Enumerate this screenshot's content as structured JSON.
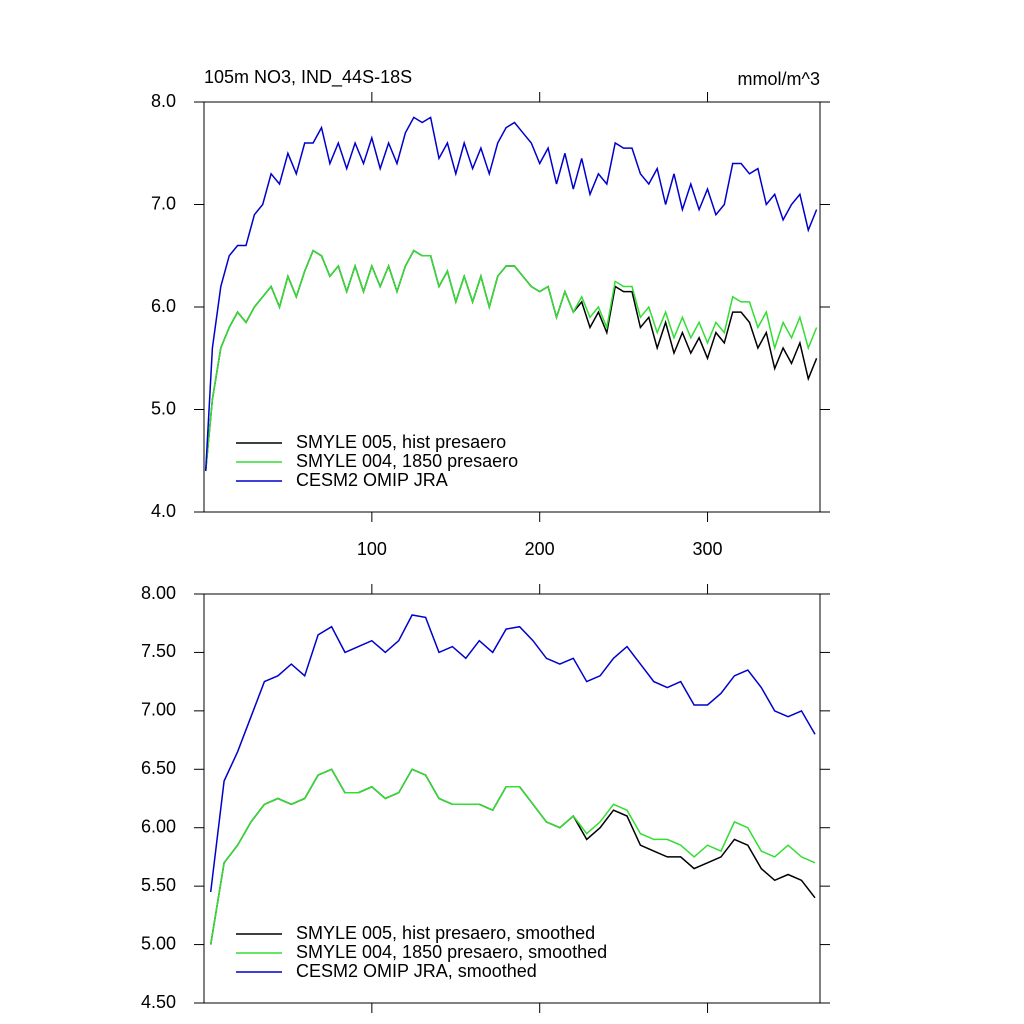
{
  "chart_data": [
    {
      "type": "line",
      "title": "105m NO3, IND_44S-18S",
      "units": "mmol/m^3",
      "x": [
        1,
        5,
        10,
        15,
        20,
        25,
        30,
        35,
        40,
        45,
        50,
        55,
        60,
        65,
        70,
        75,
        80,
        85,
        90,
        95,
        100,
        105,
        110,
        115,
        120,
        125,
        130,
        135,
        140,
        145,
        150,
        155,
        160,
        165,
        170,
        175,
        180,
        185,
        190,
        195,
        200,
        205,
        210,
        215,
        220,
        225,
        230,
        235,
        240,
        245,
        250,
        255,
        260,
        265,
        270,
        275,
        280,
        285,
        290,
        295,
        300,
        305,
        310,
        315,
        320,
        325,
        330,
        335,
        340,
        345,
        350,
        355,
        360,
        365
      ],
      "xlim": [
        0,
        367
      ],
      "xticks": [
        100,
        200,
        300
      ],
      "ylim": [
        4,
        8
      ],
      "yticks": [
        {
          "value": 4,
          "label": "4.0"
        },
        {
          "value": 5,
          "label": "5.0"
        },
        {
          "value": 6,
          "label": "6.0"
        },
        {
          "value": 7,
          "label": "7.0"
        },
        {
          "value": 8,
          "label": "8.0"
        }
      ],
      "legend": "lower left",
      "series": [
        {
          "name": "SMYLE 005, hist presaero",
          "color": "#000000",
          "values": [
            4.4,
            5.1,
            5.6,
            5.8,
            5.95,
            5.85,
            6.0,
            6.1,
            6.2,
            6.0,
            6.3,
            6.1,
            6.35,
            6.55,
            6.5,
            6.3,
            6.4,
            6.15,
            6.4,
            6.15,
            6.4,
            6.2,
            6.4,
            6.15,
            6.4,
            6.55,
            6.5,
            6.5,
            6.2,
            6.35,
            6.05,
            6.3,
            6.05,
            6.3,
            6.0,
            6.3,
            6.4,
            6.4,
            6.3,
            6.2,
            6.15,
            6.2,
            5.9,
            6.15,
            5.95,
            6.05,
            5.8,
            5.95,
            5.75,
            6.2,
            6.15,
            6.15,
            5.8,
            5.9,
            5.6,
            5.85,
            5.55,
            5.75,
            5.55,
            5.7,
            5.5,
            5.75,
            5.65,
            5.95,
            5.95,
            5.85,
            5.6,
            5.75,
            5.4,
            5.6,
            5.45,
            5.65,
            5.3,
            5.5
          ]
        },
        {
          "name": "SMYLE 004, 1850 presaero",
          "color": "#33dd33",
          "values": [
            4.4,
            5.1,
            5.6,
            5.8,
            5.95,
            5.85,
            6.0,
            6.1,
            6.2,
            6.0,
            6.3,
            6.1,
            6.35,
            6.55,
            6.5,
            6.3,
            6.4,
            6.15,
            6.4,
            6.15,
            6.4,
            6.2,
            6.4,
            6.15,
            6.4,
            6.55,
            6.5,
            6.5,
            6.2,
            6.35,
            6.05,
            6.3,
            6.05,
            6.3,
            6.0,
            6.3,
            6.4,
            6.4,
            6.3,
            6.2,
            6.15,
            6.2,
            5.9,
            6.15,
            5.95,
            6.1,
            5.9,
            6.0,
            5.8,
            6.25,
            6.2,
            6.2,
            5.9,
            6.0,
            5.75,
            5.95,
            5.7,
            5.9,
            5.7,
            5.85,
            5.65,
            5.85,
            5.75,
            6.1,
            6.05,
            6.05,
            5.8,
            5.95,
            5.6,
            5.85,
            5.7,
            5.9,
            5.6,
            5.8
          ]
        },
        {
          "name": "CESM2 OMIP JRA",
          "color": "#0000cc",
          "values": [
            4.4,
            5.6,
            6.2,
            6.5,
            6.6,
            6.6,
            6.9,
            7.0,
            7.3,
            7.2,
            7.5,
            7.3,
            7.6,
            7.6,
            7.75,
            7.4,
            7.6,
            7.35,
            7.6,
            7.4,
            7.65,
            7.35,
            7.6,
            7.4,
            7.7,
            7.85,
            7.8,
            7.85,
            7.45,
            7.6,
            7.3,
            7.6,
            7.35,
            7.55,
            7.3,
            7.6,
            7.75,
            7.8,
            7.7,
            7.6,
            7.4,
            7.55,
            7.2,
            7.5,
            7.15,
            7.45,
            7.1,
            7.3,
            7.2,
            7.6,
            7.55,
            7.55,
            7.3,
            7.2,
            7.35,
            7.0,
            7.3,
            6.95,
            7.2,
            6.95,
            7.15,
            6.9,
            7.0,
            7.4,
            7.4,
            7.3,
            7.35,
            7.0,
            7.1,
            6.85,
            7.0,
            7.1,
            6.75,
            6.95
          ]
        }
      ]
    },
    {
      "type": "line",
      "x": [
        4,
        12,
        20,
        28,
        36,
        44,
        52,
        60,
        68,
        76,
        84,
        92,
        100,
        108,
        116,
        124,
        132,
        140,
        148,
        156,
        164,
        172,
        180,
        188,
        196,
        204,
        212,
        220,
        228,
        236,
        244,
        252,
        260,
        268,
        276,
        284,
        292,
        300,
        308,
        316,
        324,
        332,
        340,
        348,
        356,
        364
      ],
      "xlim": [
        0,
        367
      ],
      "xticks": [
        100,
        200,
        300
      ],
      "ylim": [
        4.5,
        8
      ],
      "yticks": [
        {
          "value": 4.5,
          "label": "4.50"
        },
        {
          "value": 5,
          "label": "5.00"
        },
        {
          "value": 5.5,
          "label": "5.50"
        },
        {
          "value": 6,
          "label": "6.00"
        },
        {
          "value": 6.5,
          "label": "6.50"
        },
        {
          "value": 7,
          "label": "7.00"
        },
        {
          "value": 7.5,
          "label": "7.50"
        },
        {
          "value": 8,
          "label": "8.00"
        }
      ],
      "legend": "lower left",
      "series": [
        {
          "name": "SMYLE 005, hist presaero, smoothed",
          "color": "#000000",
          "values": [
            5.0,
            5.7,
            5.85,
            6.05,
            6.2,
            6.25,
            6.2,
            6.25,
            6.45,
            6.5,
            6.3,
            6.3,
            6.35,
            6.25,
            6.3,
            6.5,
            6.45,
            6.25,
            6.2,
            6.2,
            6.2,
            6.15,
            6.35,
            6.35,
            6.2,
            6.05,
            6.0,
            6.1,
            5.9,
            6.0,
            6.15,
            6.1,
            5.85,
            5.8,
            5.75,
            5.75,
            5.65,
            5.7,
            5.75,
            5.9,
            5.85,
            5.65,
            5.55,
            5.6,
            5.55,
            5.4
          ]
        },
        {
          "name": "SMYLE 004, 1850 presaero, smoothed",
          "color": "#33dd33",
          "values": [
            5.0,
            5.7,
            5.85,
            6.05,
            6.2,
            6.25,
            6.2,
            6.25,
            6.45,
            6.5,
            6.3,
            6.3,
            6.35,
            6.25,
            6.3,
            6.5,
            6.45,
            6.25,
            6.2,
            6.2,
            6.2,
            6.15,
            6.35,
            6.35,
            6.2,
            6.05,
            6.0,
            6.1,
            5.95,
            6.05,
            6.2,
            6.15,
            5.95,
            5.9,
            5.9,
            5.85,
            5.75,
            5.85,
            5.8,
            6.05,
            6.0,
            5.8,
            5.75,
            5.85,
            5.75,
            5.7
          ]
        },
        {
          "name": "CESM2 OMIP JRA, smoothed",
          "color": "#0000cc",
          "values": [
            5.45,
            6.4,
            6.65,
            6.95,
            7.25,
            7.3,
            7.4,
            7.3,
            7.65,
            7.72,
            7.5,
            7.55,
            7.6,
            7.5,
            7.6,
            7.82,
            7.8,
            7.5,
            7.55,
            7.45,
            7.6,
            7.5,
            7.7,
            7.72,
            7.6,
            7.45,
            7.4,
            7.45,
            7.25,
            7.3,
            7.45,
            7.55,
            7.4,
            7.25,
            7.2,
            7.25,
            7.05,
            7.05,
            7.15,
            7.3,
            7.35,
            7.2,
            7.0,
            6.95,
            7.0,
            6.8
          ]
        }
      ]
    }
  ]
}
